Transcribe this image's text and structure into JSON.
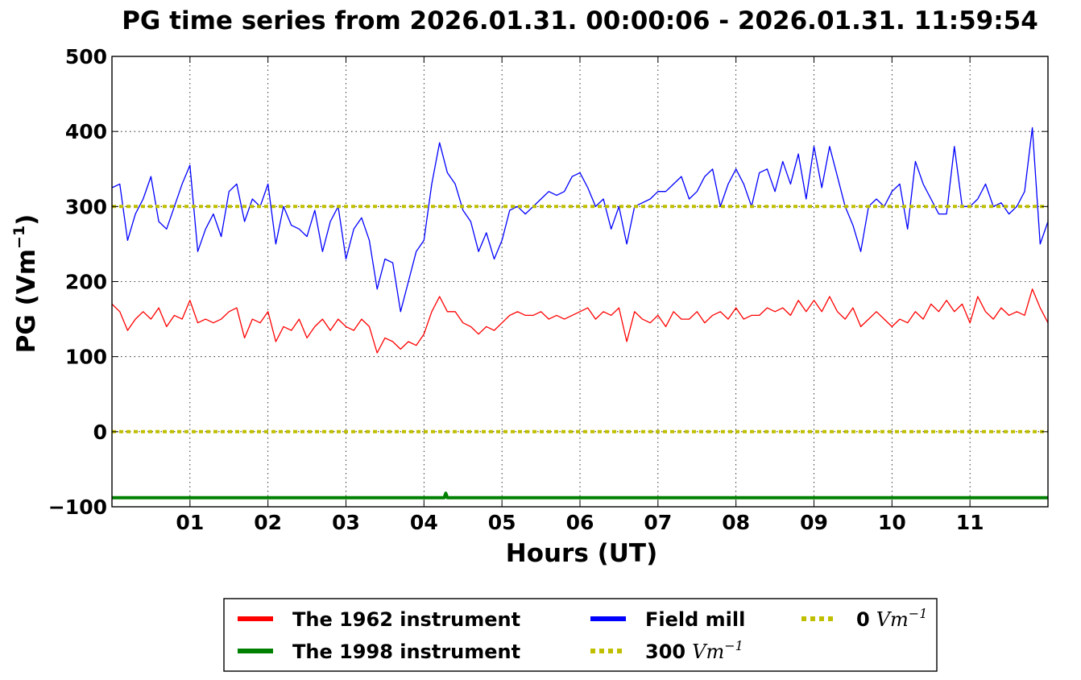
{
  "chart_data": {
    "type": "line",
    "title": "PG time series from 2026.01.31. 00:00:06 - 2026.01.31. 11:59:54",
    "xlabel": "Hours (UT)",
    "ylabel": "PG (Vm",
    "ylabel_sup": "−1",
    "ylabel_close": ")",
    "xlim": [
      0,
      12
    ],
    "ylim": [
      -100,
      500
    ],
    "grid": true,
    "legend_position": "bottom-center",
    "xticks": [
      {
        "value": 1,
        "label": "01"
      },
      {
        "value": 2,
        "label": "02"
      },
      {
        "value": 3,
        "label": "03"
      },
      {
        "value": 4,
        "label": "04"
      },
      {
        "value": 5,
        "label": "05"
      },
      {
        "value": 6,
        "label": "06"
      },
      {
        "value": 7,
        "label": "07"
      },
      {
        "value": 8,
        "label": "08"
      },
      {
        "value": 9,
        "label": "09"
      },
      {
        "value": 10,
        "label": "10"
      },
      {
        "value": 11,
        "label": "11"
      }
    ],
    "yticks": [
      {
        "value": -100,
        "label": "−100"
      },
      {
        "value": 0,
        "label": "0"
      },
      {
        "value": 100,
        "label": "100"
      },
      {
        "value": 200,
        "label": "200"
      },
      {
        "value": 300,
        "label": "300"
      },
      {
        "value": 400,
        "label": "400"
      },
      {
        "value": 500,
        "label": "500"
      }
    ],
    "series": [
      {
        "name": "Field mill",
        "color": "#0000ff",
        "style": "solid",
        "x": [
          0,
          0.1,
          0.2,
          0.3,
          0.4,
          0.5,
          0.6,
          0.7,
          0.8,
          0.9,
          1.0,
          1.1,
          1.2,
          1.3,
          1.4,
          1.5,
          1.6,
          1.7,
          1.8,
          1.9,
          2.0,
          2.1,
          2.2,
          2.3,
          2.4,
          2.5,
          2.6,
          2.7,
          2.8,
          2.9,
          3.0,
          3.1,
          3.2,
          3.3,
          3.4,
          3.5,
          3.6,
          3.7,
          3.8,
          3.9,
          4.0,
          4.1,
          4.2,
          4.3,
          4.4,
          4.5,
          4.6,
          4.7,
          4.8,
          4.9,
          5.0,
          5.1,
          5.2,
          5.3,
          5.4,
          5.5,
          5.6,
          5.7,
          5.8,
          5.9,
          6.0,
          6.1,
          6.2,
          6.3,
          6.4,
          6.5,
          6.6,
          6.7,
          6.8,
          6.9,
          7.0,
          7.1,
          7.2,
          7.3,
          7.4,
          7.5,
          7.6,
          7.7,
          7.8,
          7.9,
          8.0,
          8.1,
          8.2,
          8.3,
          8.4,
          8.5,
          8.6,
          8.7,
          8.8,
          8.9,
          9.0,
          9.1,
          9.2,
          9.3,
          9.4,
          9.5,
          9.6,
          9.7,
          9.8,
          9.9,
          10.0,
          10.1,
          10.2,
          10.3,
          10.4,
          10.5,
          10.6,
          10.7,
          10.8,
          10.9,
          11.0,
          11.1,
          11.2,
          11.3,
          11.4,
          11.5,
          11.6,
          11.7,
          11.8,
          11.9,
          12.0
        ],
        "y": [
          325,
          330,
          255,
          290,
          310,
          340,
          280,
          270,
          300,
          330,
          355,
          240,
          270,
          290,
          260,
          320,
          330,
          280,
          310,
          300,
          330,
          250,
          300,
          275,
          270,
          260,
          295,
          240,
          280,
          300,
          230,
          270,
          285,
          255,
          190,
          230,
          225,
          160,
          200,
          240,
          255,
          330,
          385,
          345,
          330,
          295,
          280,
          240,
          265,
          230,
          255,
          295,
          300,
          290,
          300,
          310,
          320,
          315,
          320,
          340,
          345,
          325,
          300,
          310,
          270,
          300,
          250,
          300,
          305,
          310,
          320,
          320,
          330,
          340,
          310,
          320,
          340,
          350,
          300,
          330,
          350,
          330,
          300,
          345,
          350,
          320,
          360,
          330,
          370,
          310,
          380,
          325,
          380,
          340,
          300,
          275,
          240,
          300,
          310,
          300,
          320,
          330,
          270,
          360,
          330,
          310,
          290,
          290,
          380,
          300,
          300,
          310,
          330,
          300,
          305,
          290,
          300,
          320,
          405,
          250,
          280
        ]
      },
      {
        "name": "The 1962 instrument",
        "color": "#ff0000",
        "style": "solid",
        "x": [
          0,
          0.1,
          0.2,
          0.3,
          0.4,
          0.5,
          0.6,
          0.7,
          0.8,
          0.9,
          1.0,
          1.1,
          1.2,
          1.3,
          1.4,
          1.5,
          1.6,
          1.7,
          1.8,
          1.9,
          2.0,
          2.1,
          2.2,
          2.3,
          2.4,
          2.5,
          2.6,
          2.7,
          2.8,
          2.9,
          3.0,
          3.1,
          3.2,
          3.3,
          3.4,
          3.5,
          3.6,
          3.7,
          3.8,
          3.9,
          4.0,
          4.1,
          4.2,
          4.3,
          4.4,
          4.5,
          4.6,
          4.7,
          4.8,
          4.9,
          5.0,
          5.1,
          5.2,
          5.3,
          5.4,
          5.5,
          5.6,
          5.7,
          5.8,
          5.9,
          6.0,
          6.1,
          6.2,
          6.3,
          6.4,
          6.5,
          6.6,
          6.7,
          6.8,
          6.9,
          7.0,
          7.1,
          7.2,
          7.3,
          7.4,
          7.5,
          7.6,
          7.7,
          7.8,
          7.9,
          8.0,
          8.1,
          8.2,
          8.3,
          8.4,
          8.5,
          8.6,
          8.7,
          8.8,
          8.9,
          9.0,
          9.1,
          9.2,
          9.3,
          9.4,
          9.5,
          9.6,
          9.7,
          9.8,
          9.9,
          10.0,
          10.1,
          10.2,
          10.3,
          10.4,
          10.5,
          10.6,
          10.7,
          10.8,
          10.9,
          11.0,
          11.1,
          11.2,
          11.3,
          11.4,
          11.5,
          11.6,
          11.7,
          11.8,
          11.9,
          12.0
        ],
        "y": [
          170,
          160,
          135,
          150,
          160,
          150,
          165,
          140,
          155,
          150,
          175,
          145,
          150,
          145,
          150,
          160,
          165,
          125,
          150,
          145,
          160,
          120,
          140,
          135,
          150,
          125,
          140,
          150,
          135,
          150,
          140,
          135,
          150,
          140,
          105,
          125,
          120,
          110,
          120,
          115,
          130,
          160,
          180,
          160,
          160,
          145,
          140,
          130,
          140,
          135,
          145,
          155,
          160,
          155,
          155,
          160,
          150,
          155,
          150,
          155,
          160,
          165,
          150,
          160,
          155,
          165,
          120,
          160,
          150,
          145,
          155,
          140,
          160,
          150,
          150,
          160,
          145,
          155,
          160,
          150,
          165,
          150,
          155,
          155,
          165,
          160,
          165,
          155,
          175,
          160,
          175,
          160,
          180,
          160,
          150,
          165,
          140,
          150,
          160,
          150,
          140,
          150,
          145,
          160,
          150,
          170,
          160,
          175,
          160,
          170,
          145,
          180,
          160,
          150,
          165,
          155,
          160,
          155,
          190,
          165,
          145
        ]
      },
      {
        "name": "The 1998 instrument",
        "color": "#008000",
        "style": "solid",
        "x": [
          0,
          4.26,
          4.28,
          4.3,
          12
        ],
        "y": [
          -88,
          -88,
          -82,
          -88,
          -88
        ]
      },
      {
        "name": "300 Vm",
        "name_sup": "−1",
        "color": "#bfbf00",
        "style": "dotted",
        "x": [
          0,
          12
        ],
        "y": [
          300,
          300
        ]
      },
      {
        "name": "0 Vm",
        "name_sup": "−1",
        "color": "#bfbf00",
        "style": "dotted",
        "x": [
          0,
          12
        ],
        "y": [
          0,
          0
        ]
      }
    ],
    "legend": [
      {
        "label": "The 1962 instrument",
        "color": "#ff0000",
        "style": "solid"
      },
      {
        "label": "The 1998 instrument",
        "color": "#008000",
        "style": "solid"
      },
      {
        "label": "Field mill",
        "color": "#0000ff",
        "style": "solid"
      },
      {
        "label": "300",
        "unit": "Vm",
        "sup": "−1",
        "color": "#bfbf00",
        "style": "dotted"
      },
      {
        "label": "0",
        "unit": "Vm",
        "sup": "−1",
        "color": "#bfbf00",
        "style": "dotted"
      }
    ]
  }
}
